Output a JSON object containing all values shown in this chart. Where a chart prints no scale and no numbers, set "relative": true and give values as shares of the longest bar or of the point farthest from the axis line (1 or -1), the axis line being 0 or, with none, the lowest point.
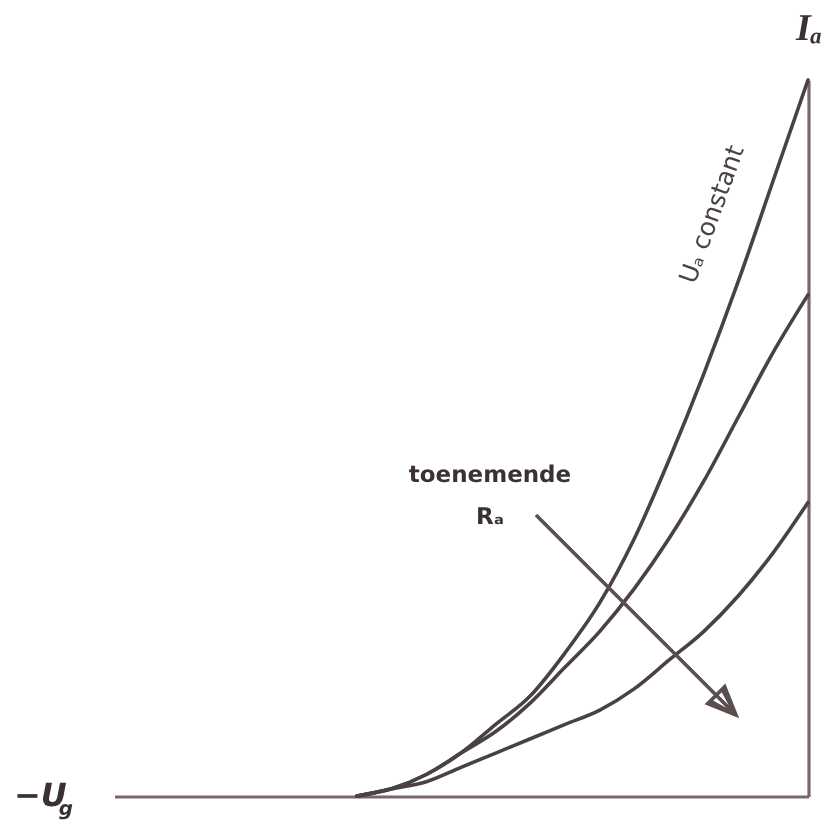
{
  "chart_data": {
    "type": "line",
    "relative": true,
    "xlabel": "−U$_{g}$",
    "ylabel": "Iₐ",
    "categories": [
      null,
      null,
      null,
      null,
      null,
      null,
      null,
      null,
      null,
      null,
      null,
      null,
      null,
      null,
      null,
      null,
      null,
      null,
      null,
      null,
      null
    ],
    "series": [
      {
        "name": "Uₐ constant",
        "color": "#4a4242",
        "values": [
          null,
          null,
          null,
          null,
          null,
          null,
          null,
          0,
          0.01,
          0.03,
          0.06,
          0.1,
          0.14,
          0.2,
          0.27,
          0.36,
          0.47,
          0.59,
          0.72,
          0.86,
          1
        ]
      },
      {
        "color": "#4a4242",
        "values": [
          null,
          null,
          null,
          null,
          null,
          null,
          null,
          0,
          0.01,
          0.03,
          0.06,
          0.09,
          0.13,
          0.18,
          0.23,
          0.29,
          0.36,
          0.44,
          0.53,
          0.62,
          0.7
        ]
      },
      {
        "color": "#4a4242",
        "values": [
          null,
          null,
          null,
          null,
          null,
          null,
          null,
          0,
          0.01,
          0.02,
          0.04,
          0.06,
          0.08,
          0.1,
          0.12,
          0.15,
          0.19,
          0.23,
          0.28,
          0.34,
          0.41
        ]
      }
    ],
    "annotations": [
      "toenemende Rₐ"
    ],
    "tick_labels": false,
    "line_style": "solid"
  }
}
